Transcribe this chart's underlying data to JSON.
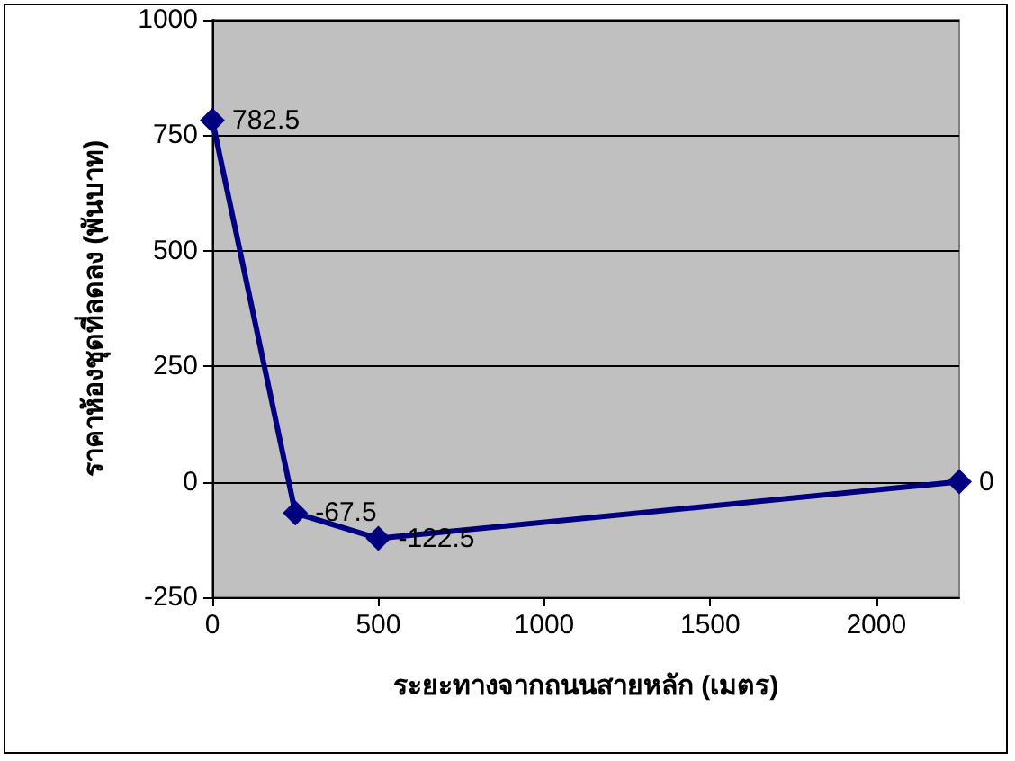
{
  "chart_data": {
    "type": "line",
    "xlabel": "ระยะทางจากถนนสายหลัก (เมตร)",
    "ylabel": "ราคาห้องชุดที่ลดลง (พันบาท)",
    "x": [
      0,
      250,
      500,
      2250
    ],
    "series": [
      {
        "color": "#000080",
        "values": [
          782.5,
          -67.5,
          -122.5,
          0
        ]
      }
    ],
    "xlim": [
      0,
      2250
    ],
    "xticks": [
      0,
      500,
      1000,
      1500,
      2000
    ],
    "ylim": [
      -250,
      1000
    ],
    "yticks": [
      -250,
      0,
      250,
      500,
      750,
      1000
    ],
    "grid": "y",
    "marker": "diamond",
    "line_style": "solid",
    "data_labels": true
  }
}
